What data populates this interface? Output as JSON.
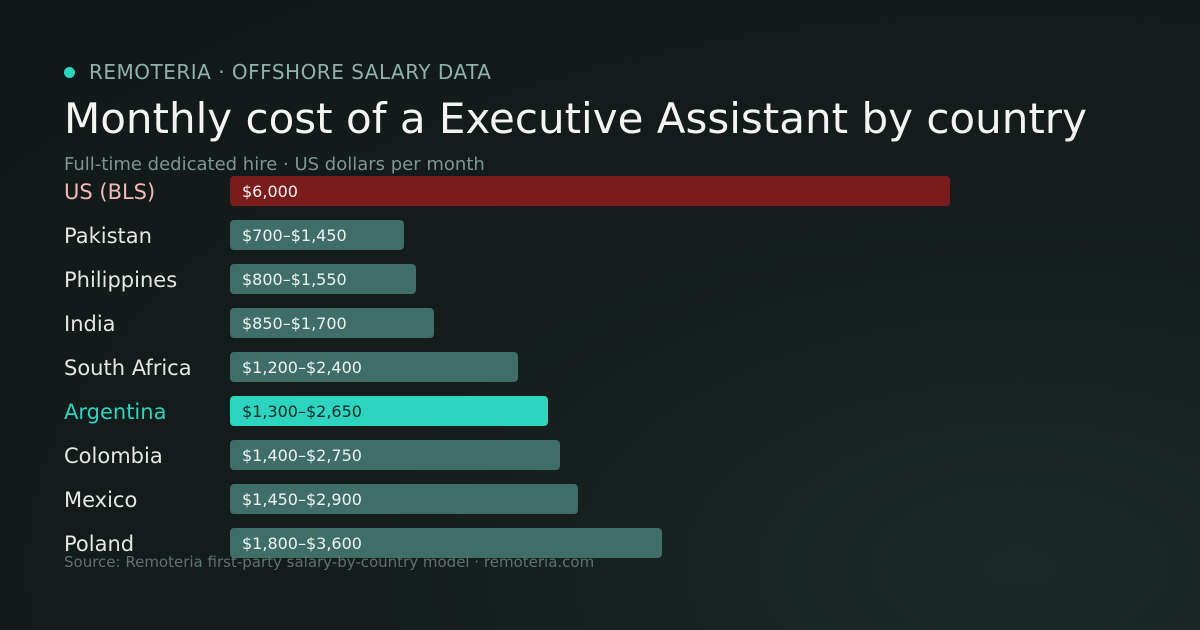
{
  "header": {
    "brand": "REMOTERIA · OFFSHORE SALARY DATA",
    "title": "Monthly cost of a Executive Assistant by country",
    "subtitle": "Full-time dedicated hire · US dollars per month"
  },
  "footer": {
    "source": "Source: Remoteria first-party salary-by-country model · remoteria.com"
  },
  "colors": {
    "baseline": "#7b1c1c",
    "baseline_label": "#f5b8b8",
    "highlight": "#2dd4bf",
    "default_bar": "#3f6e69",
    "label": "#e6e6e3",
    "background": "#141d1c"
  },
  "chart_data": {
    "type": "bar",
    "orientation": "horizontal",
    "title": "Monthly cost of a Executive Assistant by country",
    "subtitle": "Full-time dedicated hire · US dollars per month",
    "unit": "US dollars per month",
    "categories": [
      "US (BLS)",
      "Pakistan",
      "Philippines",
      "India",
      "South Africa",
      "Argentina",
      "Colombia",
      "Mexico",
      "Poland"
    ],
    "ranges": [
      {
        "low": 6000,
        "high": 6000
      },
      {
        "low": 700,
        "high": 1450
      },
      {
        "low": 800,
        "high": 1550
      },
      {
        "low": 850,
        "high": 1700
      },
      {
        "low": 1200,
        "high": 2400
      },
      {
        "low": 1300,
        "high": 2650
      },
      {
        "low": 1400,
        "high": 2750
      },
      {
        "low": 1450,
        "high": 2900
      },
      {
        "low": 1800,
        "high": 3600
      }
    ],
    "values": [
      6000,
      1450,
      1550,
      1700,
      2400,
      2650,
      2750,
      2900,
      3600
    ],
    "data_labels": [
      "$6,000",
      "$700–$1,450",
      "$800–$1,550",
      "$850–$1,700",
      "$1,200–$2,400",
      "$1,300–$2,650",
      "$1,400–$2,750",
      "$1,450–$2,900",
      "$1,800–$3,600"
    ],
    "baseline_category": "US (BLS)",
    "highlight_category": "Argentina",
    "xlim": [
      0,
      6000
    ],
    "grid": false,
    "legend": "none"
  }
}
